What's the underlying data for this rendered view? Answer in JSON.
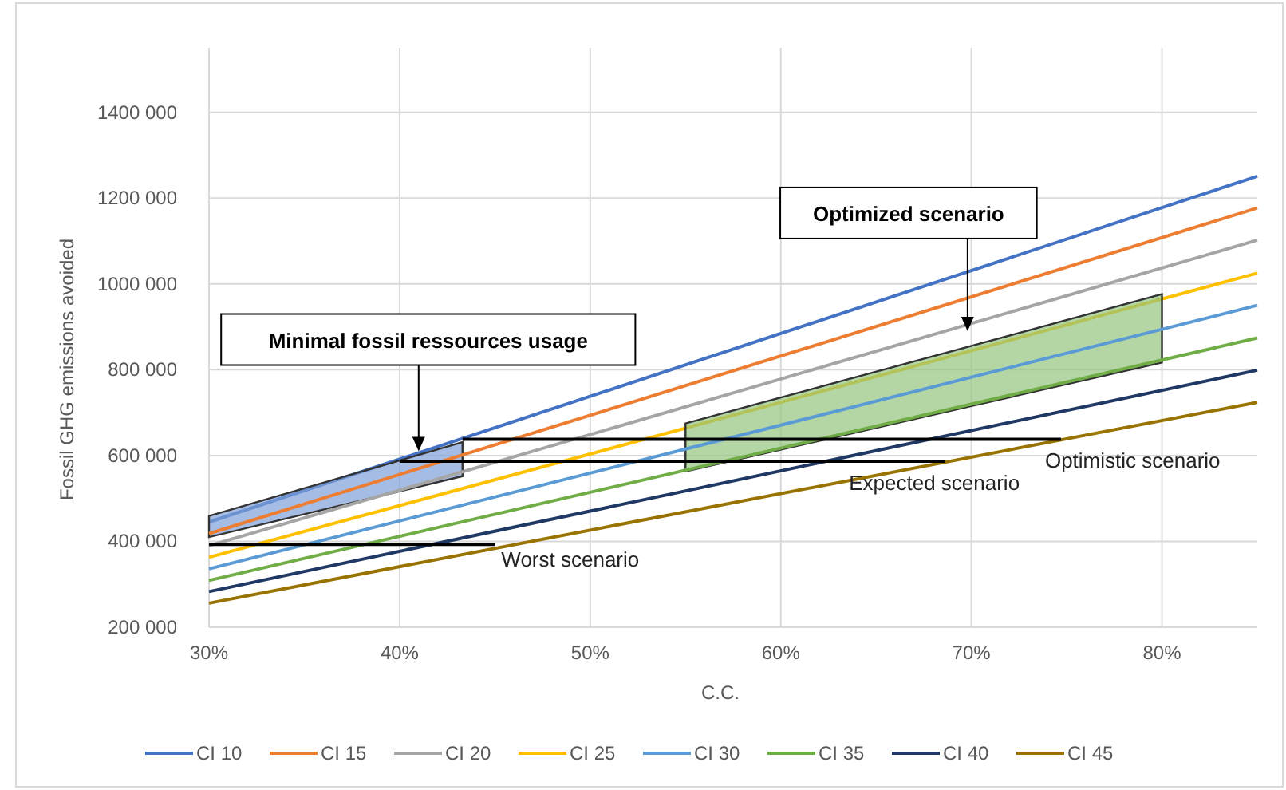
{
  "chart_data": {
    "type": "line",
    "xlabel": "C.C.",
    "ylabel": "Fossil GHG emissions avoided",
    "x": [
      30,
      85
    ],
    "xlim": [
      30,
      85
    ],
    "xticks": [
      {
        "value": 30,
        "label": "30%"
      },
      {
        "value": 40,
        "label": "40%"
      },
      {
        "value": 50,
        "label": "50%"
      },
      {
        "value": 60,
        "label": "60%"
      },
      {
        "value": 70,
        "label": "70%"
      },
      {
        "value": 80,
        "label": "80%"
      }
    ],
    "ylim": [
      200000,
      1550000
    ],
    "yticks": [
      {
        "value": 200000,
        "label": "200 000"
      },
      {
        "value": 400000,
        "label": "400 000"
      },
      {
        "value": 600000,
        "label": "600 000"
      },
      {
        "value": 800000,
        "label": "800 000"
      },
      {
        "value": 1000000,
        "label": "1000 000"
      },
      {
        "value": 1200000,
        "label": "1200 000"
      },
      {
        "value": 1400000,
        "label": "1400 000"
      }
    ],
    "grid": true,
    "legend": "bottom",
    "marker": "none",
    "line_style": "solid",
    "series": [
      {
        "name": "CI 10",
        "color": "#4472c4",
        "values": [
          445000,
          1251000
        ]
      },
      {
        "name": "CI 15",
        "color": "#ed7d31",
        "x": [
          30,
          43.3,
          85
        ],
        "values": [
          418000,
          601500,
          1177000
        ],
        "lower": [
          410000,
          552000,
          null
        ],
        "upper": [
          459000,
          631000,
          null
        ]
      },
      {
        "name": "CI 20",
        "color": "#a5a5a5",
        "values": [
          390000,
          1102000
        ]
      },
      {
        "name": "CI 25",
        "color": "#ffc000",
        "values": [
          363000,
          1025000
        ]
      },
      {
        "name": "CI 30",
        "color": "#5b9bd5",
        "x": [
          30,
          55,
          80,
          85
        ],
        "values": [
          336000,
          615100,
          894200,
          950000
        ],
        "lower": [
          null,
          563000,
          817000,
          null
        ],
        "upper": [
          null,
          675000,
          976000,
          null
        ]
      },
      {
        "name": "CI 35",
        "color": "#70ad47",
        "values": [
          309000,
          874000
        ]
      },
      {
        "name": "CI 40",
        "color": "#203864",
        "values": [
          283000,
          799000
        ]
      },
      {
        "name": "CI 45",
        "color": "#997300",
        "values": [
          256000,
          724000
        ]
      },
      {
        "name": "Worst scenario",
        "color": "#000000",
        "x": [
          30,
          45
        ],
        "values": [
          393000,
          393000
        ]
      },
      {
        "name": "Expected scenario",
        "color": "#000000",
        "x": [
          40,
          68.6
        ],
        "values": [
          587000,
          587000
        ]
      },
      {
        "name": "Optimistic scenario",
        "color": "#000000",
        "x": [
          43.3,
          74.7
        ],
        "values": [
          638000,
          638000
        ]
      }
    ],
    "annotations": [
      {
        "text": "Minimal fossil ressources usage",
        "x": 41,
        "y": 610000
      },
      {
        "text": "Optimized scenario",
        "x": 69.8,
        "y": 890000
      }
    ]
  }
}
